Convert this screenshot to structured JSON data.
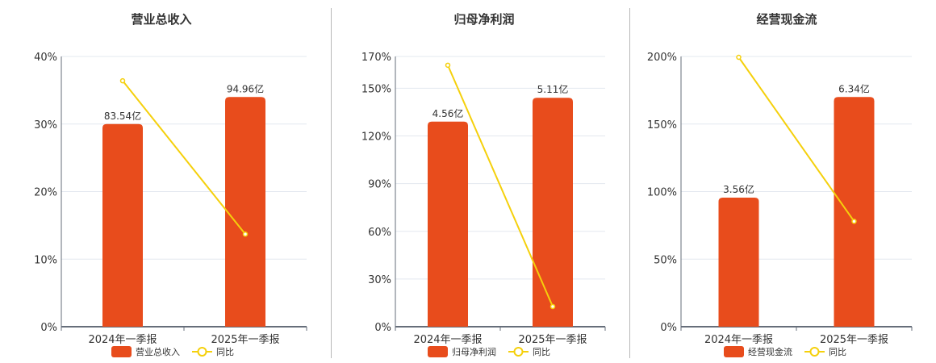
{
  "colors": {
    "bar": "#e84c1c",
    "line": "#f5d00c",
    "grid": "#e3e8ef",
    "axis": "#666e7a"
  },
  "legend": {
    "yoy_label": "同比"
  },
  "chart_data": [
    {
      "type": "bar",
      "title": "营业总收入",
      "categories": [
        "2024年一季报",
        "2025年一季报"
      ],
      "series": [
        {
          "name": "营业总收入",
          "type": "bar",
          "values": [
            30.0,
            34.0
          ],
          "labels": [
            "83.54亿",
            "94.96亿"
          ]
        },
        {
          "name": "同比",
          "type": "line",
          "values": [
            36.4,
            13.7
          ]
        }
      ],
      "yticks": [
        0,
        10,
        20,
        30,
        40
      ],
      "ylim": [
        0,
        40
      ],
      "ytick_suffix": "%"
    },
    {
      "type": "bar",
      "title": "归母净利润",
      "categories": [
        "2024年一季报",
        "2025年一季报"
      ],
      "series": [
        {
          "name": "归母净利润",
          "type": "bar",
          "values": [
            129,
            144
          ],
          "labels": [
            "4.56亿",
            "5.11亿"
          ]
        },
        {
          "name": "同比",
          "type": "line",
          "values": [
            164.5,
            12.7
          ]
        }
      ],
      "yticks": [
        0,
        30,
        60,
        90,
        120,
        150,
        170
      ],
      "ylim": [
        0,
        170
      ],
      "ytick_suffix": "%"
    },
    {
      "type": "bar",
      "title": "经营现金流",
      "categories": [
        "2024年一季报",
        "2025年一季报"
      ],
      "series": [
        {
          "name": "经营现金流",
          "type": "bar",
          "values": [
            95.5,
            170
          ],
          "labels": [
            "3.56亿",
            "6.34亿"
          ]
        },
        {
          "name": "同比",
          "type": "line",
          "values": [
            199.4,
            78
          ]
        }
      ],
      "yticks": [
        0,
        50,
        100,
        150,
        200
      ],
      "ylim": [
        0,
        200
      ],
      "ytick_suffix": "%"
    }
  ]
}
